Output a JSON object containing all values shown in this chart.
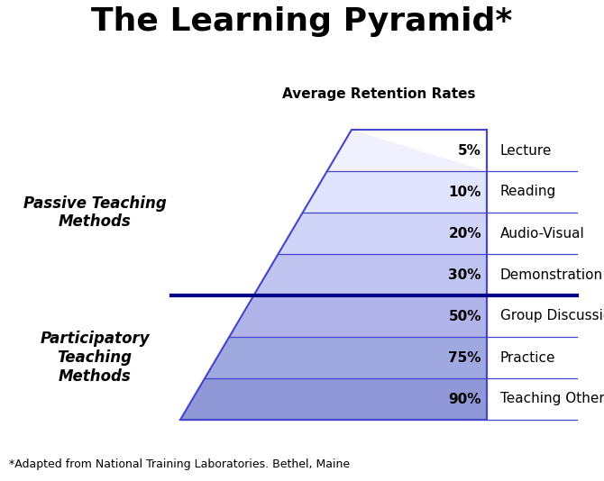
{
  "title": "The Learning Pyramid*",
  "subtitle": "Average Retention Rates",
  "footnote": "*Adapted from National Training Laboratories. Bethel, Maine",
  "levels": [
    {
      "pct": "5%",
      "label": "Lecture"
    },
    {
      "pct": "10%",
      "label": "Reading"
    },
    {
      "pct": "20%",
      "label": "Audio-Visual"
    },
    {
      "pct": "30%",
      "label": "Demonstration"
    },
    {
      "pct": "50%",
      "label": "Group Discussion"
    },
    {
      "pct": "75%",
      "label": "Practice"
    },
    {
      "pct": "90%",
      "label": "Teaching Others"
    }
  ],
  "passive_label": "Passive Teaching\nMethods",
  "participatory_label": "Participatory\nTeaching\nMethods",
  "passive_rows": 4,
  "participatory_rows": 3,
  "line_color": "#4444cc",
  "divider_color": "#00008b",
  "bg_color": "#ffffff",
  "title_fontsize": 26,
  "subtitle_fontsize": 11,
  "pct_fontsize": 11,
  "label_fontsize": 11,
  "side_label_fontsize": 12,
  "footnote_fontsize": 9,
  "colors_band": [
    "#f0f0ff",
    "#e0e4ff",
    "#d0d4f8",
    "#c0c4f0",
    "#b0b4e8",
    "#a0a8e0",
    "#9098d8"
  ]
}
